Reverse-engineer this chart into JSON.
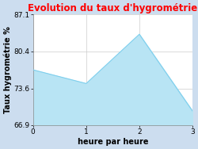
{
  "title": "Evolution du taux d'hygrométrie",
  "xlabel": "heure par heure",
  "ylabel": "Taux hygrométrie %",
  "x": [
    0,
    1,
    2,
    3
  ],
  "y": [
    77.0,
    74.5,
    83.5,
    69.5
  ],
  "ylim": [
    66.9,
    87.1
  ],
  "xlim": [
    0,
    3
  ],
  "yticks": [
    66.9,
    73.6,
    80.4,
    87.1
  ],
  "xticks": [
    0,
    1,
    2,
    3
  ],
  "line_color": "#7ecfed",
  "fill_color": "#b8e4f4",
  "title_color": "#ff0000",
  "background_color": "#ccddef",
  "plot_bg_color": "#ffffff",
  "grid_color": "#cccccc",
  "title_fontsize": 8.5,
  "label_fontsize": 7,
  "tick_fontsize": 6.5
}
